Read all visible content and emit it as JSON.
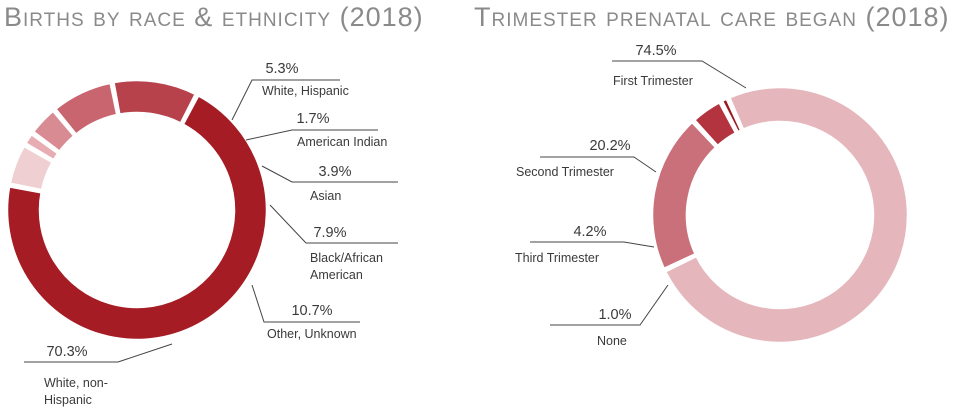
{
  "chart_data": [
    {
      "type": "pie",
      "title": "Births by race & ethnicity (2018)",
      "slices": [
        {
          "label": "White, non-Hispanic",
          "label_lines": [
            "White, non-",
            "Hispanic"
          ],
          "value": 70.3,
          "value_label": "70.3%",
          "color": "#a51c24"
        },
        {
          "label": "White, Hispanic",
          "label_lines": [
            "White, Hispanic"
          ],
          "value": 5.3,
          "value_label": "5.3%",
          "color": "#efcfd2"
        },
        {
          "label": "American Indian",
          "label_lines": [
            "American Indian"
          ],
          "value": 1.7,
          "value_label": "1.7%",
          "color": "#e7adb3"
        },
        {
          "label": "Asian",
          "label_lines": [
            "Asian"
          ],
          "value": 3.9,
          "value_label": "3.9%",
          "color": "#d98b93"
        },
        {
          "label": "Black/African American",
          "label_lines": [
            "Black/African",
            "American"
          ],
          "value": 7.9,
          "value_label": "7.9%",
          "color": "#c9656e"
        },
        {
          "label": "Other, Unknown",
          "label_lines": [
            "Other, Unknown"
          ],
          "value": 10.7,
          "value_label": "10.7%",
          "color": "#b8424c"
        }
      ]
    },
    {
      "type": "pie",
      "title": "Trimester prenatal care began (2018)",
      "slices": [
        {
          "label": "First Trimester",
          "label_lines": [
            "First Trimester"
          ],
          "value": 74.5,
          "value_label": "74.5%",
          "color": "#e5b7bc"
        },
        {
          "label": "Second Trimester",
          "label_lines": [
            "Second Trimester"
          ],
          "value": 20.2,
          "value_label": "20.2%",
          "color": "#c9707a"
        },
        {
          "label": "Third Trimester",
          "label_lines": [
            "Third Trimester"
          ],
          "value": 4.2,
          "value_label": "4.2%",
          "color": "#b3333f"
        },
        {
          "label": "None",
          "label_lines": [
            "None"
          ],
          "value": 1.0,
          "value_label": "1.0%",
          "color": "#9a1a22"
        }
      ]
    }
  ]
}
